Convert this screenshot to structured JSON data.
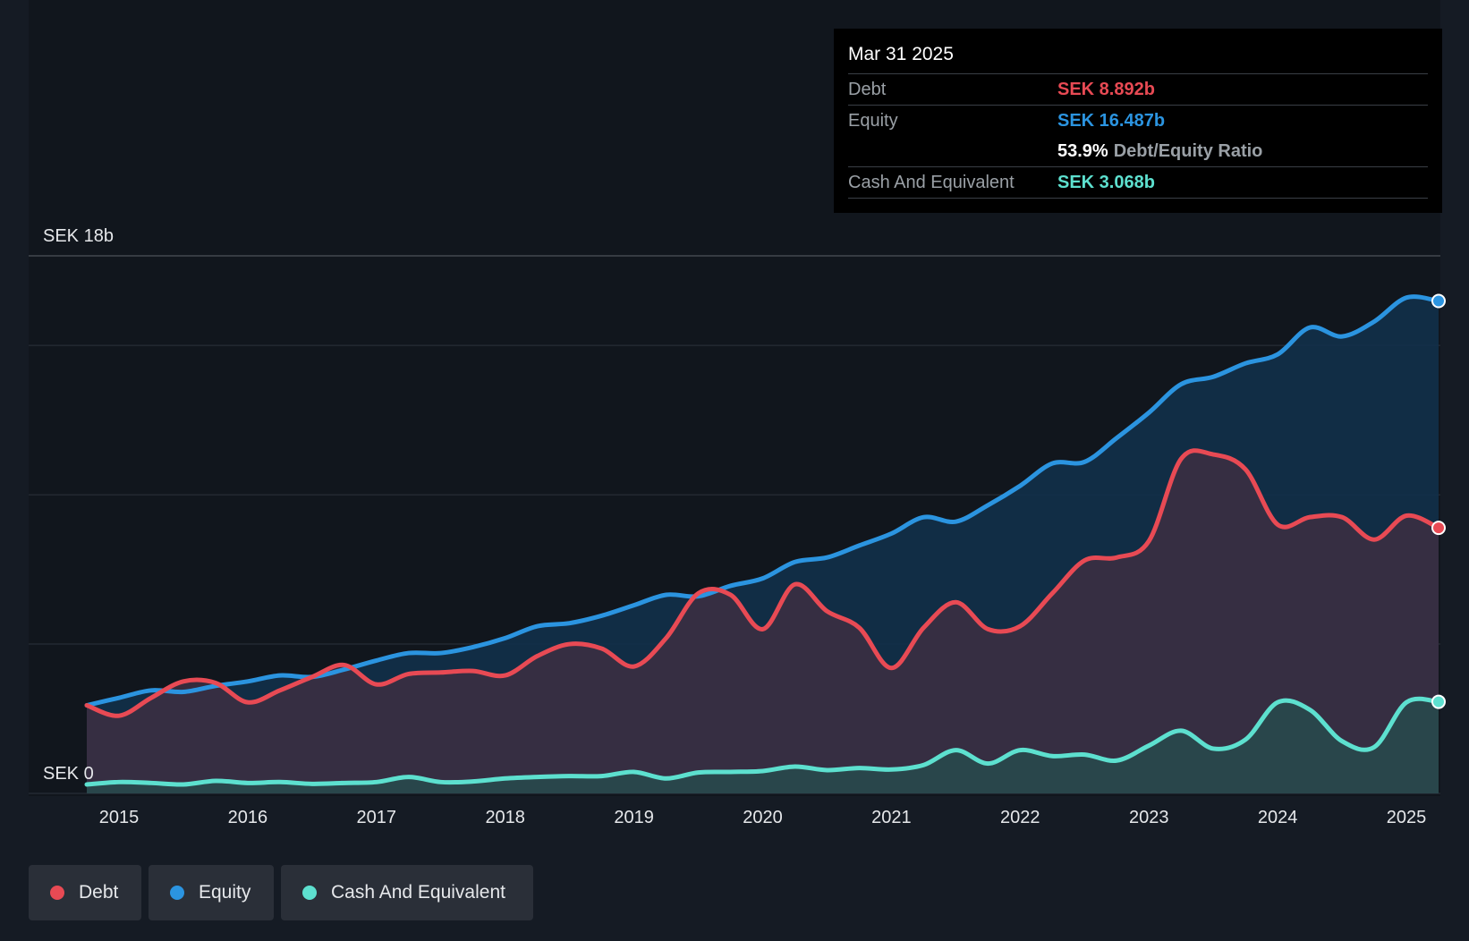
{
  "chart_data": {
    "type": "area",
    "currency_unit": "SEK",
    "y_label_top": "SEK 18b",
    "y_label_bottom": "SEK 0",
    "ylim": [
      0,
      18
    ],
    "xlim": [
      2014.7,
      2025.25
    ],
    "x_ticks": [
      "2015",
      "2016",
      "2017",
      "2018",
      "2019",
      "2020",
      "2021",
      "2022",
      "2023",
      "2024",
      "2025"
    ],
    "gridlines": [
      0,
      5,
      10,
      15,
      18
    ],
    "series": [
      {
        "name": "Debt",
        "color": "#e84a54",
        "fill": "#3d2f42",
        "points": [
          [
            2014.75,
            2.95
          ],
          [
            2015.0,
            2.6
          ],
          [
            2015.25,
            3.2
          ],
          [
            2015.5,
            3.75
          ],
          [
            2015.75,
            3.7
          ],
          [
            2016.0,
            3.05
          ],
          [
            2016.25,
            3.45
          ],
          [
            2016.5,
            3.9
          ],
          [
            2016.75,
            4.3
          ],
          [
            2017.0,
            3.65
          ],
          [
            2017.25,
            4.0
          ],
          [
            2017.5,
            4.05
          ],
          [
            2017.75,
            4.1
          ],
          [
            2018.0,
            3.95
          ],
          [
            2018.25,
            4.6
          ],
          [
            2018.5,
            5.0
          ],
          [
            2018.75,
            4.85
          ],
          [
            2019.0,
            4.25
          ],
          [
            2019.25,
            5.2
          ],
          [
            2019.5,
            6.7
          ],
          [
            2019.75,
            6.65
          ],
          [
            2020.0,
            5.5
          ],
          [
            2020.25,
            7.0
          ],
          [
            2020.5,
            6.1
          ],
          [
            2020.75,
            5.55
          ],
          [
            2021.0,
            4.2
          ],
          [
            2021.25,
            5.55
          ],
          [
            2021.5,
            6.4
          ],
          [
            2021.75,
            5.5
          ],
          [
            2022.0,
            5.6
          ],
          [
            2022.25,
            6.7
          ],
          [
            2022.5,
            7.8
          ],
          [
            2022.75,
            7.9
          ],
          [
            2023.0,
            8.45
          ],
          [
            2023.25,
            11.2
          ],
          [
            2023.5,
            11.35
          ],
          [
            2023.75,
            10.85
          ],
          [
            2024.0,
            9.0
          ],
          [
            2024.25,
            9.25
          ],
          [
            2024.5,
            9.25
          ],
          [
            2024.75,
            8.5
          ],
          [
            2025.0,
            9.3
          ],
          [
            2025.25,
            8.892
          ]
        ]
      },
      {
        "name": "Equity",
        "color": "#2b94e0",
        "fill": "#12304a",
        "points": [
          [
            2014.75,
            2.95
          ],
          [
            2015.0,
            3.2
          ],
          [
            2015.25,
            3.45
          ],
          [
            2015.5,
            3.4
          ],
          [
            2015.75,
            3.6
          ],
          [
            2016.0,
            3.75
          ],
          [
            2016.25,
            3.95
          ],
          [
            2016.5,
            3.9
          ],
          [
            2016.75,
            4.15
          ],
          [
            2017.0,
            4.45
          ],
          [
            2017.25,
            4.7
          ],
          [
            2017.5,
            4.7
          ],
          [
            2017.75,
            4.9
          ],
          [
            2018.0,
            5.2
          ],
          [
            2018.25,
            5.6
          ],
          [
            2018.5,
            5.7
          ],
          [
            2018.75,
            5.95
          ],
          [
            2019.0,
            6.3
          ],
          [
            2019.25,
            6.65
          ],
          [
            2019.5,
            6.6
          ],
          [
            2019.75,
            6.95
          ],
          [
            2020.0,
            7.2
          ],
          [
            2020.25,
            7.75
          ],
          [
            2020.5,
            7.9
          ],
          [
            2020.75,
            8.3
          ],
          [
            2021.0,
            8.7
          ],
          [
            2021.25,
            9.25
          ],
          [
            2021.5,
            9.1
          ],
          [
            2021.75,
            9.65
          ],
          [
            2022.0,
            10.3
          ],
          [
            2022.25,
            11.05
          ],
          [
            2022.5,
            11.1
          ],
          [
            2022.75,
            11.9
          ],
          [
            2023.0,
            12.75
          ],
          [
            2023.25,
            13.7
          ],
          [
            2023.5,
            13.95
          ],
          [
            2023.75,
            14.4
          ],
          [
            2024.0,
            14.7
          ],
          [
            2024.25,
            15.6
          ],
          [
            2024.5,
            15.3
          ],
          [
            2024.75,
            15.8
          ],
          [
            2025.0,
            16.6
          ],
          [
            2025.25,
            16.487
          ]
        ]
      },
      {
        "name": "Cash And Equivalent",
        "color": "#5de0cf",
        "fill": "#274a4c",
        "points": [
          [
            2014.75,
            0.3
          ],
          [
            2015.0,
            0.38
          ],
          [
            2015.25,
            0.35
          ],
          [
            2015.5,
            0.3
          ],
          [
            2015.75,
            0.42
          ],
          [
            2016.0,
            0.35
          ],
          [
            2016.25,
            0.38
          ],
          [
            2016.5,
            0.32
          ],
          [
            2016.75,
            0.35
          ],
          [
            2017.0,
            0.38
          ],
          [
            2017.25,
            0.55
          ],
          [
            2017.5,
            0.38
          ],
          [
            2017.75,
            0.4
          ],
          [
            2018.0,
            0.5
          ],
          [
            2018.25,
            0.55
          ],
          [
            2018.5,
            0.58
          ],
          [
            2018.75,
            0.58
          ],
          [
            2019.0,
            0.72
          ],
          [
            2019.25,
            0.5
          ],
          [
            2019.5,
            0.7
          ],
          [
            2019.75,
            0.72
          ],
          [
            2020.0,
            0.75
          ],
          [
            2020.25,
            0.9
          ],
          [
            2020.5,
            0.78
          ],
          [
            2020.75,
            0.85
          ],
          [
            2021.0,
            0.8
          ],
          [
            2021.25,
            0.95
          ],
          [
            2021.5,
            1.45
          ],
          [
            2021.75,
            1.0
          ],
          [
            2022.0,
            1.45
          ],
          [
            2022.25,
            1.25
          ],
          [
            2022.5,
            1.3
          ],
          [
            2022.75,
            1.1
          ],
          [
            2023.0,
            1.6
          ],
          [
            2023.25,
            2.1
          ],
          [
            2023.5,
            1.5
          ],
          [
            2023.75,
            1.8
          ],
          [
            2024.0,
            3.05
          ],
          [
            2024.25,
            2.8
          ],
          [
            2024.5,
            1.75
          ],
          [
            2024.75,
            1.55
          ],
          [
            2025.0,
            3.05
          ],
          [
            2025.25,
            3.068
          ]
        ]
      }
    ],
    "tooltip": {
      "date": "Mar 31 2025",
      "debt_label": "Debt",
      "debt_value": "SEK 8.892b",
      "equity_label": "Equity",
      "equity_value": "SEK 16.487b",
      "ratio_value": "53.9%",
      "ratio_label": "Debt/Equity Ratio",
      "cash_label": "Cash And Equivalent",
      "cash_value": "SEK 3.068b"
    }
  },
  "legend": {
    "debt": "Debt",
    "equity": "Equity",
    "cash": "Cash And Equivalent"
  },
  "colors": {
    "debt": "#e84a54",
    "equity": "#2b94e0",
    "cash": "#5de0cf",
    "background": "#151b24"
  }
}
